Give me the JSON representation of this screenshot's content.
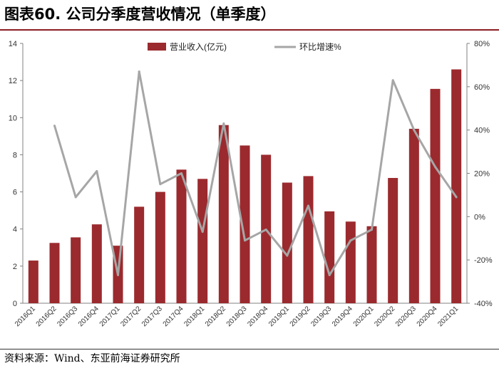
{
  "header": {
    "title": "图表60. 公司分季度营收情况（单季度）"
  },
  "footer": {
    "source": "资料来源：Wind、东亚前海证券研究所"
  },
  "chart_data": {
    "type": "bar+line",
    "categories": [
      "2016Q1",
      "2016Q2",
      "2016Q3",
      "2016Q4",
      "2017Q1",
      "2017Q2",
      "2017Q3",
      "2017Q4",
      "2018Q1",
      "2018Q2",
      "2018Q3",
      "2018Q4",
      "2019Q1",
      "2019Q2",
      "2019Q3",
      "2019Q4",
      "2020Q1",
      "2020Q2",
      "2020Q3",
      "2020Q4",
      "2021Q1"
    ],
    "series": [
      {
        "name": "营业收入(亿元)",
        "type": "bar",
        "axis": "left",
        "color": "#9b2a2e",
        "values": [
          2.3,
          3.25,
          3.55,
          4.25,
          3.1,
          5.2,
          6.0,
          7.2,
          6.7,
          9.6,
          8.5,
          8.0,
          6.5,
          6.85,
          4.95,
          4.4,
          4.15,
          6.75,
          9.4,
          11.55,
          12.6
        ]
      },
      {
        "name": "环比增速%",
        "type": "line",
        "axis": "right",
        "color": "#a6a6a6",
        "values": [
          null,
          42,
          9,
          21,
          -27,
          67,
          15,
          20,
          -7,
          43,
          -11,
          -6,
          -18,
          5,
          -27,
          -11,
          -6,
          63,
          40,
          23,
          9
        ]
      }
    ],
    "y_left": {
      "ylim": [
        0,
        14
      ],
      "ticks": [
        "0",
        "2",
        "4",
        "6",
        "8",
        "10",
        "12",
        "14"
      ]
    },
    "y_right": {
      "ylim": [
        -40,
        80
      ],
      "ticks": [
        "-40%",
        "-20%",
        "0%",
        "20%",
        "40%",
        "60%",
        "80%"
      ]
    },
    "legend": "top-center",
    "grid": false
  }
}
